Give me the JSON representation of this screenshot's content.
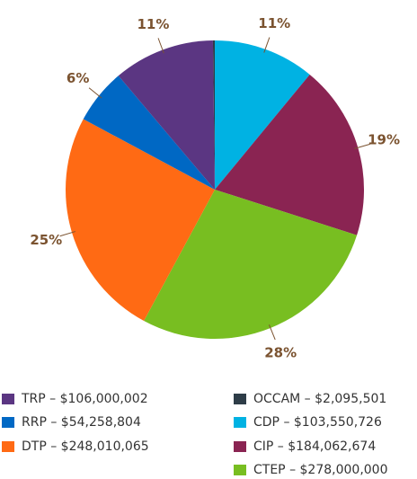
{
  "chart_data": {
    "type": "pie",
    "categories": [
      "OCCAM – $2,095,501",
      "CDP – $103,550,726",
      "CIP – $184,062,674",
      "CTEP – $278,000,000",
      "DTP – $248,010,065",
      "RRP – $54,258,804",
      "TRP – $106,000,002"
    ],
    "values": [
      0.2,
      11,
      19,
      28,
      25,
      6,
      11
    ],
    "value_labels": [
      null,
      "11%",
      "19%",
      "28%",
      "25%",
      "6%",
      "11%"
    ],
    "colors": [
      "#2e3d48",
      "#00b2e3",
      "#8a2452",
      "#78be21",
      "#ff6a14",
      "#0068c4",
      "#5b3682"
    ]
  }
}
